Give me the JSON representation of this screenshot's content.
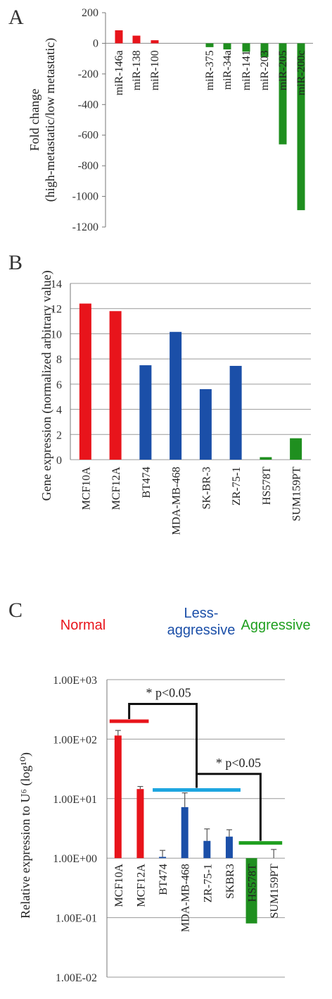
{
  "chart_data": [
    {
      "panel": "A",
      "type": "bar",
      "ylabel_lines": [
        "Fold change",
        "(high-metastatic/low metastatic)"
      ],
      "ylim": [
        -1200,
        200
      ],
      "yticks": [
        "200",
        "0",
        "-200",
        "-400",
        "-600",
        "-800",
        "-1000",
        "-1200"
      ],
      "categories": [
        "miR-146a",
        "miR-138",
        "miR-100",
        "miR-375",
        "miR-34a",
        "miR-141",
        "miR-203",
        "miR-205",
        "miR-200c"
      ],
      "values": [
        85,
        50,
        20,
        -25,
        -40,
        -55,
        -90,
        -660,
        -1090
      ],
      "colors": [
        "#e8141b",
        "#e8141b",
        "#e8141b",
        "#1f8f1f",
        "#1f8f1f",
        "#1f8f1f",
        "#1f8f1f",
        "#1f8f1f",
        "#1f8f1f"
      ]
    },
    {
      "panel": "B",
      "type": "bar",
      "ylabel": "Gene expression (normalized arbitrary value)",
      "ylim": [
        0,
        14
      ],
      "yticks": [
        "0",
        "2",
        "4",
        "6",
        "8",
        "10",
        "12",
        "14"
      ],
      "grid": true,
      "categories": [
        "MCF10A",
        "MCF12A",
        "BT474",
        "MDA-MB-468",
        "SK-BR-3",
        "ZR-75-1",
        "HS578T",
        "SUM159PT"
      ],
      "values": [
        12.4,
        11.8,
        7.5,
        10.15,
        5.6,
        7.45,
        0.2,
        1.7
      ],
      "colors": [
        "#e8141b",
        "#e8141b",
        "#1b4fa8",
        "#1b4fa8",
        "#1b4fa8",
        "#1b4fa8",
        "#1f8f1f",
        "#1f8f1f"
      ]
    },
    {
      "panel": "C",
      "type": "bar",
      "scale": "log",
      "ylabel": "Relative expression to U⁶ (log¹⁰)",
      "ylim": [
        0.01,
        1000
      ],
      "yticks": [
        "1.00E+03",
        "1.00E+02",
        "1.00E+01",
        "1.00E+00",
        "1.00E-01",
        "1.00E-02"
      ],
      "grid": true,
      "categories": [
        "MCF10A",
        "MCF12A",
        "BT474",
        "MDA-MB-468",
        "ZR-75-1",
        "SKBR3",
        "HS578T",
        "SUM159PT"
      ],
      "values": [
        115,
        14.5,
        1.05,
        7.2,
        1.95,
        2.3,
        0.08,
        1.0
      ],
      "errors_upper": [
        140,
        16,
        1.35,
        12.5,
        3.1,
        3.0,
        0.08,
        1.4
      ],
      "colors": [
        "#e8141b",
        "#e8141b",
        "#1b4fa8",
        "#1b4fa8",
        "#1b4fa8",
        "#1b4fa8",
        "#1f8f1f",
        "#1f8f1f"
      ],
      "groups": [
        {
          "label_lines": [
            "Normal"
          ],
          "color": "#e8141b"
        },
        {
          "label_lines": [
            "Less-",
            "aggressive"
          ],
          "color": "#1b4fa8"
        },
        {
          "label_lines": [
            "Aggressive"
          ],
          "color": "#1f9f1f"
        }
      ],
      "group_means": [
        200,
        14,
        1.8
      ],
      "mean_colors": [
        "#e8141b",
        "#1ea6e0",
        "#1f9f1f"
      ],
      "annotations": [
        "* p<0.05",
        "* p<0.05"
      ]
    }
  ]
}
